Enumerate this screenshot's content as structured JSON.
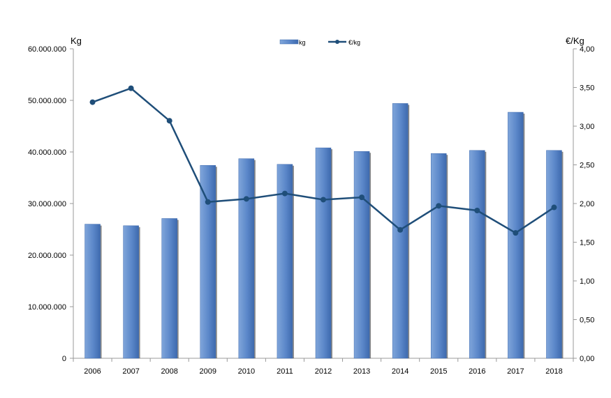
{
  "chart_data": {
    "type": "bar",
    "categories": [
      "2006",
      "2007",
      "2008",
      "2009",
      "2010",
      "2011",
      "2012",
      "2013",
      "2014",
      "2015",
      "2016",
      "2017",
      "2018"
    ],
    "series": [
      {
        "name": "kg",
        "type": "bar",
        "axis": "left",
        "color": "#5B87C9",
        "values": [
          26000000,
          25700000,
          27100000,
          37400000,
          38700000,
          37600000,
          40800000,
          40100000,
          49400000,
          39700000,
          40300000,
          47700000,
          40300000
        ]
      },
      {
        "name": "€/kg",
        "type": "line",
        "axis": "right",
        "color": "#1F4E79",
        "values": [
          3.31,
          3.49,
          3.07,
          2.02,
          2.06,
          2.13,
          2.05,
          2.08,
          1.66,
          1.97,
          1.91,
          1.62,
          1.95
        ]
      }
    ],
    "left_axis": {
      "label": "Kg",
      "ylim": [
        0,
        60000000
      ],
      "ticks": [
        0,
        10000000,
        20000000,
        30000000,
        40000000,
        50000000,
        60000000
      ],
      "tick_labels": [
        "0",
        "10.000.000",
        "20.000.000",
        "30.000.000",
        "40.000.000",
        "50.000.000",
        "60.000.000"
      ]
    },
    "right_axis": {
      "label": "€/Kg",
      "ylim": [
        0,
        4
      ],
      "ticks": [
        0,
        0.5,
        1,
        1.5,
        2,
        2.5,
        3,
        3.5,
        4
      ],
      "tick_labels": [
        "0,00",
        "0,50",
        "1,00",
        "1,50",
        "2,00",
        "2,50",
        "3,00",
        "3,50",
        "4,00"
      ]
    },
    "legend": {
      "placement": "top-center",
      "entries": [
        "kg",
        "€/kg"
      ]
    },
    "grid": false
  }
}
